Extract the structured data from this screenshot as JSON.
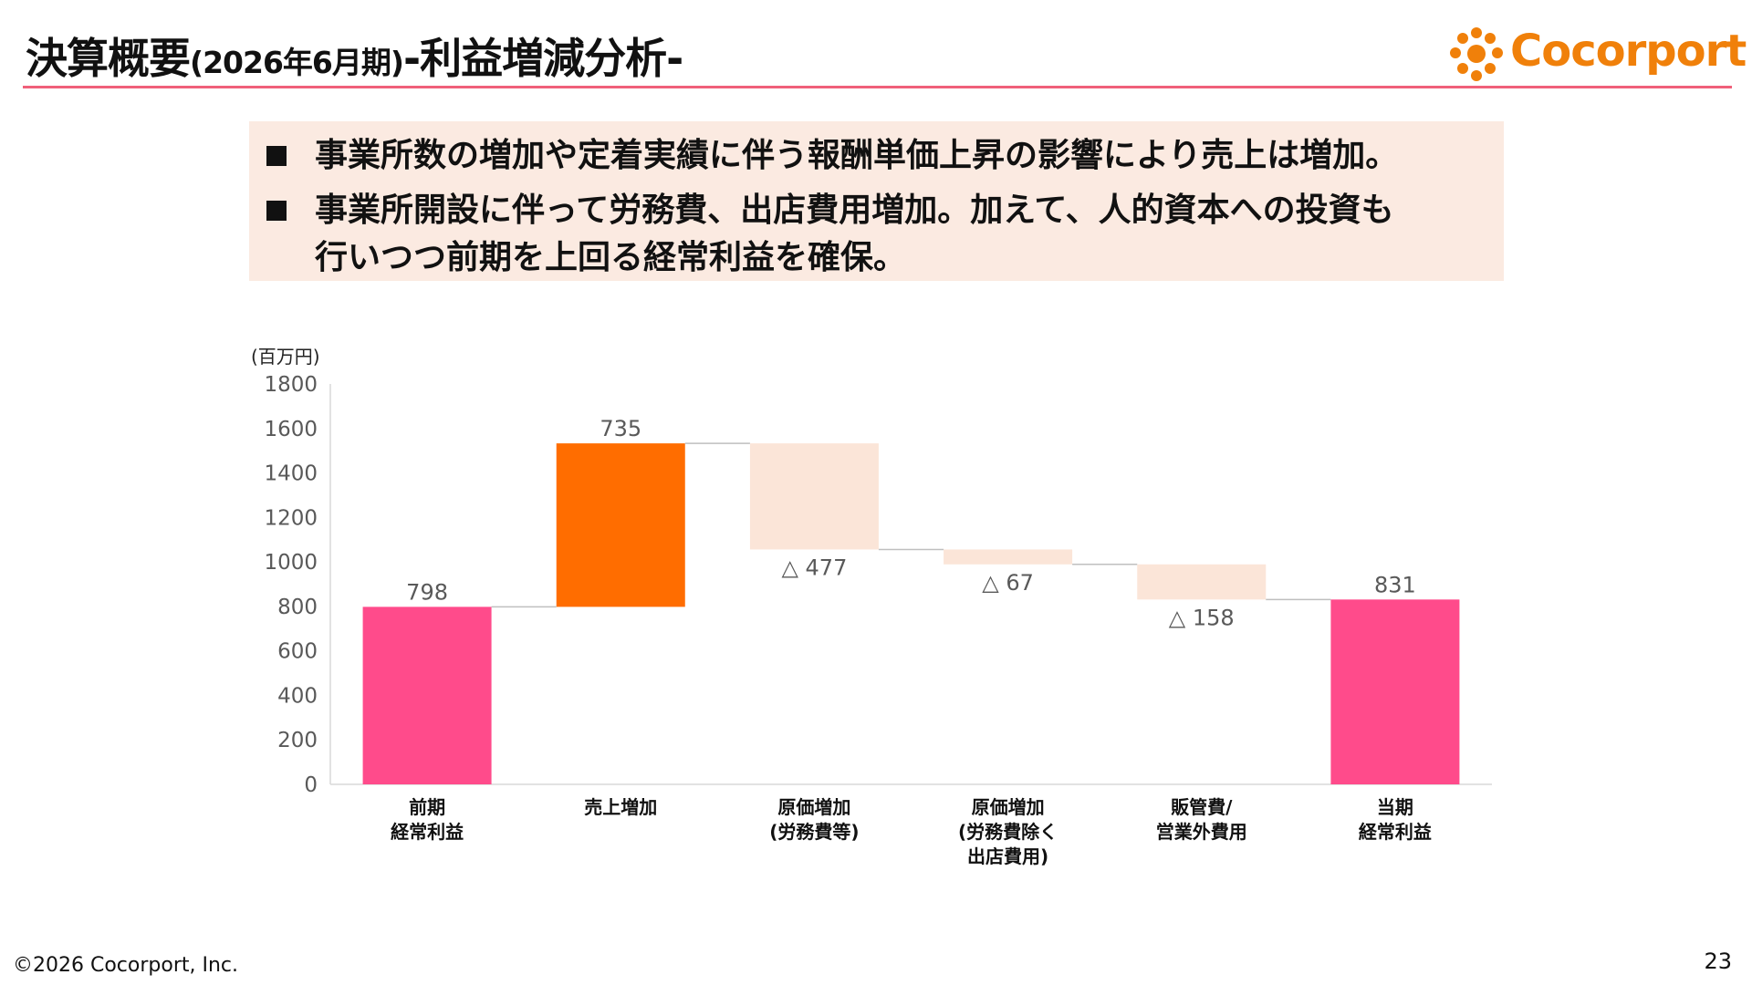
{
  "header": {
    "title_main": "決算概要",
    "title_period": "(2026年6月期)",
    "title_suffix": "-利益増減分析-",
    "logo": "Cocorport"
  },
  "bullets": [
    "事業所数の増加や定着実績に伴う報酬単価上昇の影響により売上は増加。",
    "事業所開設に伴って労務費、出店費用増加。加えて、人的資本への投資も\n行いつつ前期を上回る経常利益を確保。"
  ],
  "chart_data": {
    "type": "waterfall",
    "y_unit": "(百万円)",
    "categories": [
      "前期\n経常利益",
      "売上増加",
      "原価増加\n(労務費等)",
      "原価増加\n(労務費除く\n出店費用)",
      "販管費/\n営業外費用",
      "当期\n経常利益"
    ],
    "values": [
      798,
      735,
      -477,
      -67,
      -158,
      831
    ],
    "value_labels": [
      "798",
      "735",
      "△ 477",
      "△ 67",
      "△ 158",
      "831"
    ],
    "is_total": [
      true,
      false,
      false,
      false,
      false,
      true
    ],
    "colors": [
      "#ff4b8b",
      "#ff6d00",
      "#fbe5d8",
      "#fbe5d8",
      "#fbe5d8",
      "#ff4b8b"
    ],
    "ylim": [
      0,
      1800
    ],
    "yticks": [
      0,
      200,
      400,
      600,
      800,
      1000,
      1200,
      1400,
      1600,
      1800
    ],
    "grid": false
  },
  "footer": {
    "copyright": "©2026 Cocorport, Inc.",
    "page": "23"
  }
}
